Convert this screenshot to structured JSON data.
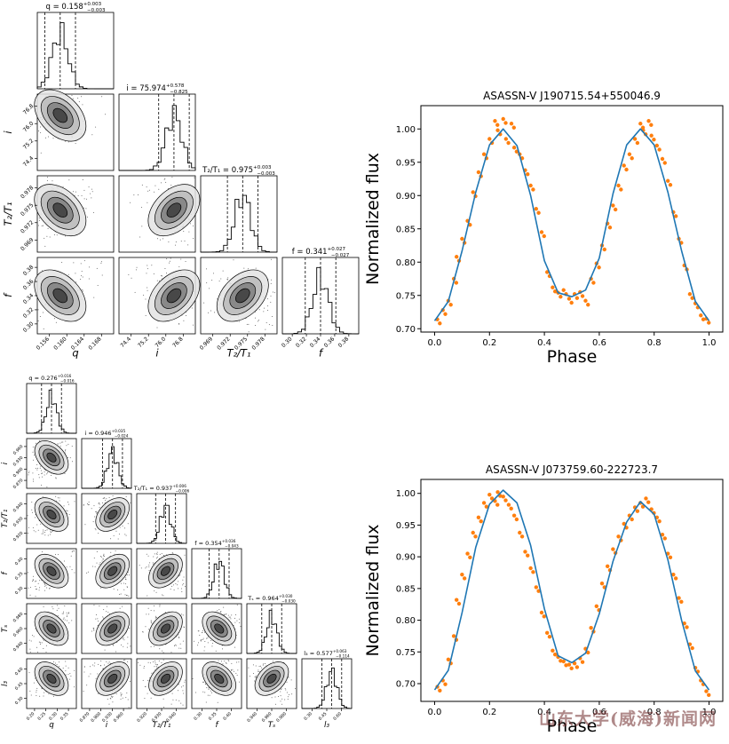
{
  "colors": {
    "model": "#1f77b4",
    "obs": "#ff7f0e",
    "axis": "#000000",
    "corner": "#333333"
  },
  "watermark": "山东大学(威海)新闻网",
  "corners": [
    {
      "params": [
        "q",
        "i",
        "T2/T1",
        "f"
      ],
      "params_display": [
        "q",
        "i",
        "T₂/T₁",
        "f"
      ],
      "titles": [
        {
          "name": "q",
          "value": "0.158",
          "plus": "+0.003",
          "minus": "−0.003"
        },
        {
          "name": "i",
          "value": "75.974",
          "plus": "+0.578",
          "minus": "−0.825"
        },
        {
          "name": "T₂/T₁",
          "value": "0.975",
          "plus": "+0.003",
          "minus": "−0.003"
        },
        {
          "name": "f",
          "value": "0.341",
          "plus": "+0.027",
          "minus": "−0.027"
        }
      ],
      "ticks": [
        [
          "0.156",
          "0.160",
          "0.164",
          "0.168"
        ],
        [
          "74.4",
          "75.2",
          "76.0",
          "76.8"
        ],
        [
          "0.969",
          "0.972",
          "0.975",
          "0.978"
        ],
        [
          "0.30",
          "0.32",
          "0.34",
          "0.36",
          "0.38"
        ]
      ],
      "ylabels": [
        "i",
        "T₂/T₁",
        "f"
      ]
    },
    {
      "params": [
        "q",
        "i",
        "T2/T1",
        "f",
        "Ts",
        "l3"
      ],
      "params_display": [
        "q",
        "i",
        "T₂/T₁",
        "f",
        "Tₛ",
        "l₃"
      ],
      "titles": [
        {
          "name": "q",
          "value": "0.276",
          "plus": "+0.016",
          "minus": "−0.016"
        },
        {
          "name": "i",
          "value": "0.946",
          "plus": "+0.035",
          "minus": "−0.024"
        },
        {
          "name": "T₂/T₁",
          "value": "0.937",
          "plus": "+0.006",
          "minus": "−0.006"
        },
        {
          "name": "f",
          "value": "0.354",
          "plus": "+0.036",
          "minus": "−0.043"
        },
        {
          "name": "Tₛ",
          "value": "0.964",
          "plus": "+0.030",
          "minus": "−0.030"
        },
        {
          "name": "l₃",
          "value": "0.577",
          "plus": "+0.063",
          "minus": "−0.114"
        }
      ],
      "ticks": [
        [
          "0.20",
          "0.25",
          "0.30",
          "0.35"
        ],
        [
          "0.870",
          "0.900",
          "0.930",
          "0.960"
        ],
        [
          "0.920",
          "0.930",
          "0.940"
        ],
        [
          "0.30",
          "0.35",
          "0.40"
        ],
        [
          "0.940",
          "0.960",
          "0.980"
        ],
        [
          "0.30",
          "0.45",
          "0.60"
        ]
      ],
      "ylabels": [
        "i",
        "T₂/T₁",
        "f",
        "Tₛ",
        "l₃"
      ]
    }
  ],
  "chart_data": [
    {
      "type": "scatter",
      "title": "ASASSN-V J190715.54+550046.9",
      "xlabel": "Phase",
      "ylabel": "Normalized flux",
      "xlim": [
        -0.05,
        1.05
      ],
      "ylim": [
        0.695,
        1.035
      ],
      "xticks": [
        "0.0",
        "0.2",
        "0.4",
        "0.6",
        "0.8",
        "1.0"
      ],
      "yticks": [
        "0.70",
        "0.75",
        "0.80",
        "0.85",
        "0.90",
        "0.95",
        "1.00"
      ],
      "model": {
        "name": "model",
        "x": [
          0.0,
          0.05,
          0.1,
          0.15,
          0.2,
          0.25,
          0.3,
          0.35,
          0.4,
          0.45,
          0.5,
          0.55,
          0.6,
          0.65,
          0.7,
          0.75,
          0.8,
          0.85,
          0.9,
          0.95,
          1.0
        ],
        "y": [
          0.712,
          0.741,
          0.817,
          0.905,
          0.976,
          1.0,
          0.975,
          0.9,
          0.802,
          0.754,
          0.748,
          0.758,
          0.806,
          0.903,
          0.976,
          1.0,
          0.976,
          0.905,
          0.817,
          0.741,
          0.712
        ]
      },
      "observed": {
        "name": "observed",
        "x": [
          0.01,
          0.03,
          0.05,
          0.07,
          0.08,
          0.1,
          0.12,
          0.14,
          0.16,
          0.18,
          0.2,
          0.22,
          0.23,
          0.25,
          0.26,
          0.28,
          0.29,
          0.31,
          0.33,
          0.35,
          0.37,
          0.39,
          0.41,
          0.43,
          0.45,
          0.47,
          0.49,
          0.51,
          0.53,
          0.55,
          0.57,
          0.59,
          0.61,
          0.63,
          0.65,
          0.67,
          0.69,
          0.71,
          0.73,
          0.75,
          0.76,
          0.78,
          0.79,
          0.81,
          0.83,
          0.85,
          0.87,
          0.89,
          0.91,
          0.93,
          0.95,
          0.97,
          0.99
        ],
        "y": [
          0.714,
          0.728,
          0.742,
          0.775,
          0.808,
          0.835,
          0.862,
          0.905,
          0.935,
          0.962,
          0.985,
          1.012,
          0.998,
          1.015,
          0.985,
          1.008,
          0.972,
          0.962,
          0.938,
          0.915,
          0.88,
          0.845,
          0.785,
          0.762,
          0.754,
          0.758,
          0.745,
          0.752,
          0.755,
          0.742,
          0.775,
          0.798,
          0.825,
          0.858,
          0.885,
          0.915,
          0.945,
          0.962,
          0.985,
          1.008,
          0.998,
          1.012,
          0.99,
          0.975,
          0.955,
          0.922,
          0.875,
          0.835,
          0.795,
          0.752,
          0.738,
          0.72,
          0.715
        ]
      }
    },
    {
      "type": "scatter",
      "title": "ASASSN-V J073759.60-222723.7",
      "xlabel": "Phase",
      "ylabel": "Normalized flux",
      "xlim": [
        -0.05,
        1.05
      ],
      "ylim": [
        0.672,
        1.022
      ],
      "xticks": [
        "0.0",
        "0.2",
        "0.4",
        "0.6",
        "0.8",
        "1.0"
      ],
      "yticks": [
        "0.70",
        "0.75",
        "0.80",
        "0.85",
        "0.90",
        "0.95",
        "1.00"
      ],
      "model": {
        "name": "model",
        "x": [
          0.0,
          0.05,
          0.1,
          0.15,
          0.2,
          0.25,
          0.3,
          0.35,
          0.4,
          0.45,
          0.5,
          0.55,
          0.6,
          0.65,
          0.7,
          0.75,
          0.8,
          0.85,
          0.9,
          0.95,
          1.0
        ],
        "y": [
          0.69,
          0.721,
          0.812,
          0.915,
          0.983,
          1.005,
          0.985,
          0.918,
          0.818,
          0.744,
          0.733,
          0.748,
          0.81,
          0.893,
          0.955,
          0.987,
          0.967,
          0.895,
          0.8,
          0.72,
          0.69
        ]
      },
      "observed": {
        "name": "observed",
        "x": [
          0.01,
          0.03,
          0.05,
          0.07,
          0.08,
          0.1,
          0.12,
          0.14,
          0.16,
          0.18,
          0.2,
          0.22,
          0.23,
          0.25,
          0.27,
          0.29,
          0.31,
          0.33,
          0.35,
          0.37,
          0.39,
          0.41,
          0.43,
          0.45,
          0.47,
          0.49,
          0.51,
          0.53,
          0.55,
          0.57,
          0.59,
          0.61,
          0.63,
          0.65,
          0.67,
          0.69,
          0.71,
          0.73,
          0.75,
          0.77,
          0.79,
          0.81,
          0.83,
          0.85,
          0.87,
          0.89,
          0.91,
          0.93,
          0.95,
          0.97,
          0.99
        ],
        "y": [
          0.695,
          0.705,
          0.738,
          0.775,
          0.832,
          0.872,
          0.905,
          0.938,
          0.962,
          0.985,
          0.998,
          0.988,
          1.002,
          0.995,
          0.982,
          0.965,
          0.938,
          0.908,
          0.882,
          0.852,
          0.812,
          0.78,
          0.752,
          0.742,
          0.735,
          0.73,
          0.732,
          0.74,
          0.755,
          0.788,
          0.822,
          0.858,
          0.885,
          0.912,
          0.932,
          0.952,
          0.965,
          0.978,
          0.985,
          0.992,
          0.975,
          0.962,
          0.935,
          0.905,
          0.872,
          0.835,
          0.795,
          0.762,
          0.725,
          0.705,
          0.688
        ]
      }
    }
  ]
}
